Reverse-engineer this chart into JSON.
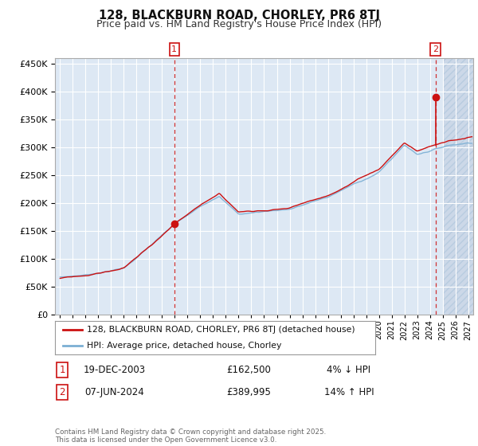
{
  "title": "128, BLACKBURN ROAD, CHORLEY, PR6 8TJ",
  "subtitle": "Price paid vs. HM Land Registry's House Price Index (HPI)",
  "legend_line1": "128, BLACKBURN ROAD, CHORLEY, PR6 8TJ (detached house)",
  "legend_line2": "HPI: Average price, detached house, Chorley",
  "annotation1_year": 2003.96,
  "annotation1_price": 162500,
  "annotation2_year": 2024.44,
  "annotation2_price": 389995,
  "ylim": [
    0,
    460000
  ],
  "xlim_start": 1994.6,
  "xlim_end": 2027.4,
  "hatch_start": 2025.0,
  "background_color": "#dde8f4",
  "hatch_color": "#ccd8e8",
  "grid_color": "#ffffff",
  "hpi_color": "#7bafd4",
  "price_color": "#cc1111",
  "vline_color": "#cc1111",
  "footer_text": "Contains HM Land Registry data © Crown copyright and database right 2025.\nThis data is licensed under the Open Government Licence v3.0.",
  "table_row1_num": "1",
  "table_row1_date": "19-DEC-2003",
  "table_row1_price": "£162,500",
  "table_row1_pct": "4% ↓ HPI",
  "table_row2_num": "2",
  "table_row2_date": "07-JUN-2024",
  "table_row2_price": "£389,995",
  "table_row2_pct": "14% ↑ HPI"
}
